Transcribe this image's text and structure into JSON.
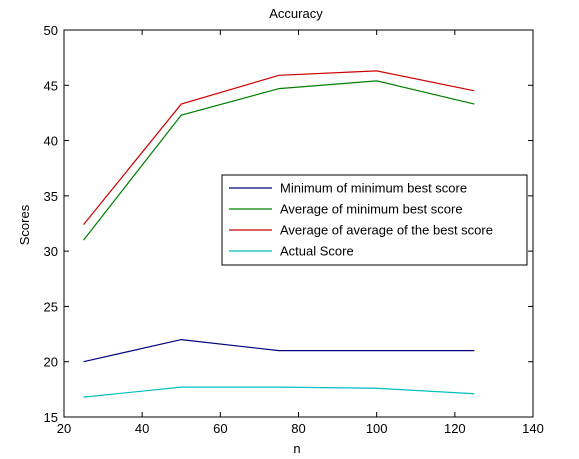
{
  "chart_data": {
    "type": "line",
    "title": "Accuracy",
    "xlabel": "n",
    "ylabel": "Scores",
    "xlim": [
      20,
      140
    ],
    "ylim": [
      15,
      50
    ],
    "xticks": [
      20,
      40,
      60,
      80,
      100,
      120,
      140
    ],
    "yticks": [
      15,
      20,
      25,
      30,
      35,
      40,
      45,
      50
    ],
    "grid": false,
    "legend_position": "center-right",
    "x": [
      25,
      50,
      75,
      100,
      125
    ],
    "series": [
      {
        "name": "Minimum of minimum best score",
        "color": "#00007f",
        "values": [
          20.0,
          22.0,
          21.0,
          21.0,
          21.0
        ]
      },
      {
        "name": "Average of minimum best score",
        "color": "#007f00",
        "values": [
          31.0,
          42.3,
          44.7,
          45.4,
          43.3
        ]
      },
      {
        "name": "Average of average of the best score",
        "color": "#cc0000",
        "values": [
          32.4,
          43.3,
          45.9,
          46.3,
          44.5
        ]
      },
      {
        "name": "Actual Score",
        "color": "#00bfbf",
        "values": [
          16.8,
          17.7,
          17.7,
          17.6,
          17.1
        ]
      }
    ]
  }
}
